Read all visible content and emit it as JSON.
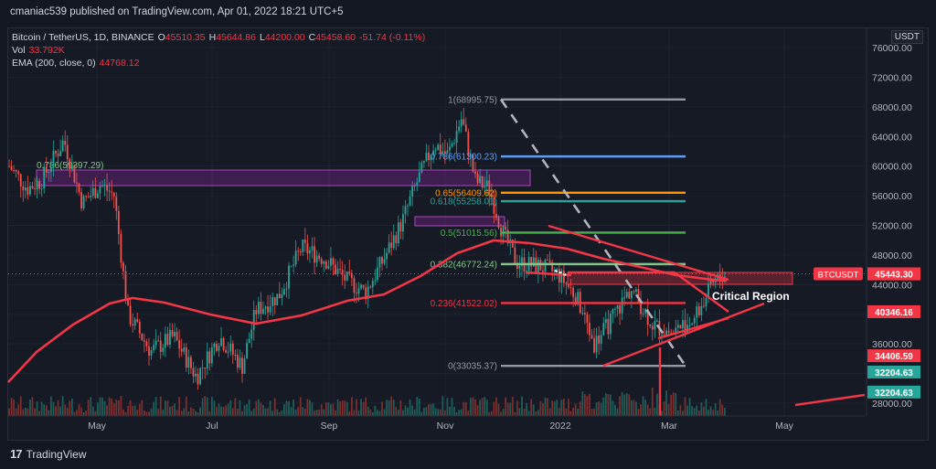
{
  "header": {
    "published": "cmaniac539 published on TradingView.com, Apr 01, 2022 18:21 UTC+5"
  },
  "legend": {
    "symbol": "Bitcoin / TetherUS, 1D, BINANCE",
    "o_label": "O",
    "o": "45510.35",
    "h_label": "H",
    "h": "45644.86",
    "l_label": "L",
    "l": "44200.00",
    "c_label": "C",
    "c": "45458.60",
    "change": "-51.74 (-0.11%)",
    "vol_label": "Vol",
    "vol": "33.792K",
    "ema_label": "EMA (200, close, 0)",
    "ema": "44768.12"
  },
  "axis": {
    "currency": "USDT"
  },
  "footer": {
    "brand": "TradingView"
  },
  "colors": {
    "bg": "#131722",
    "up": "#26a69a",
    "down": "#ef5350",
    "ema": "#f23645",
    "fib_blue": "#5b9cf6",
    "fib_orange": "#ff9800",
    "fib_teal": "#26a69a",
    "fib_green": "#81c784",
    "fib_gray": "#9598a1",
    "fib_red": "#f23645",
    "zone": "#9c27b0"
  },
  "chart_data": {
    "type": "candlestick",
    "symbol": "BTCUSDT",
    "yrange": [
      26000,
      80000
    ],
    "y_ticks": [
      28000,
      32000,
      36000,
      40000,
      44000,
      48000,
      52000,
      56000,
      60000,
      64000,
      68000,
      72000,
      76000
    ],
    "y_tick_labels": [
      "28000.00",
      "32000.00",
      "36000.00",
      "40000.00",
      "44000.00",
      "48000.00",
      "52000.00",
      "56000.00",
      "60000.00",
      "64000.00",
      "68000.00",
      "72000.00",
      "76000.00"
    ],
    "x_labels": [
      "May",
      "Jul",
      "Sep",
      "Nov",
      "2022",
      "Mar",
      "May"
    ],
    "price_tags": [
      {
        "label": "BTCUSDT",
        "value": "45458.60",
        "y": 45458.6,
        "style": "symbol"
      },
      {
        "label": "",
        "value": "45443.30",
        "y": 45443.3,
        "style": "red"
      },
      {
        "label": "",
        "value": "40346.16",
        "y": 40346.16,
        "style": "red"
      },
      {
        "label": "",
        "value": "34406.59",
        "y": 34406.59,
        "style": "red"
      },
      {
        "label": "",
        "value": "32204.63",
        "y": 32204.63,
        "style": "green"
      },
      {
        "label": "",
        "value": "32204.63",
        "y": 29500,
        "style": "green"
      }
    ],
    "fib_levels": [
      {
        "ratio": "1",
        "price": "68995.75",
        "label": "1(68995.75)",
        "y": 68995.75,
        "color": "#9598a1"
      },
      {
        "ratio": "0.786",
        "price": "61300.23",
        "label": "0.786(61300.23)",
        "y": 61300.23,
        "color": "#5b9cf6"
      },
      {
        "ratio": "0.65",
        "price": "56409.62",
        "label": "0.65(56409.62)",
        "y": 56409.62,
        "color": "#ff9800"
      },
      {
        "ratio": "0.618",
        "price": "55258.01",
        "label": "0.618(55258.01)",
        "y": 55258.01,
        "color": "#26a69a"
      },
      {
        "ratio": "0.5",
        "price": "51015.56",
        "label": "0.5(51015.56)",
        "y": 51015.56,
        "color": "#4caf50"
      },
      {
        "ratio": "0.382",
        "price": "46772.24",
        "label": "0.382(46772.24)",
        "y": 46772.24,
        "color": "#81c784"
      },
      {
        "ratio": "0.236",
        "price": "41522.02",
        "label": "0.236(41522.02)",
        "y": 41522.02,
        "color": "#f23645"
      },
      {
        "ratio": "0",
        "price": "33035.37",
        "label": "0(33035.37)",
        "y": 33035.37,
        "color": "#9598a1"
      }
    ],
    "left_zone_label": "0.786(59397.29)",
    "left_zone_value": 59397.29,
    "annotation": "Critical Region",
    "last_price": 45458.6,
    "ema_value": 44768.12
  }
}
